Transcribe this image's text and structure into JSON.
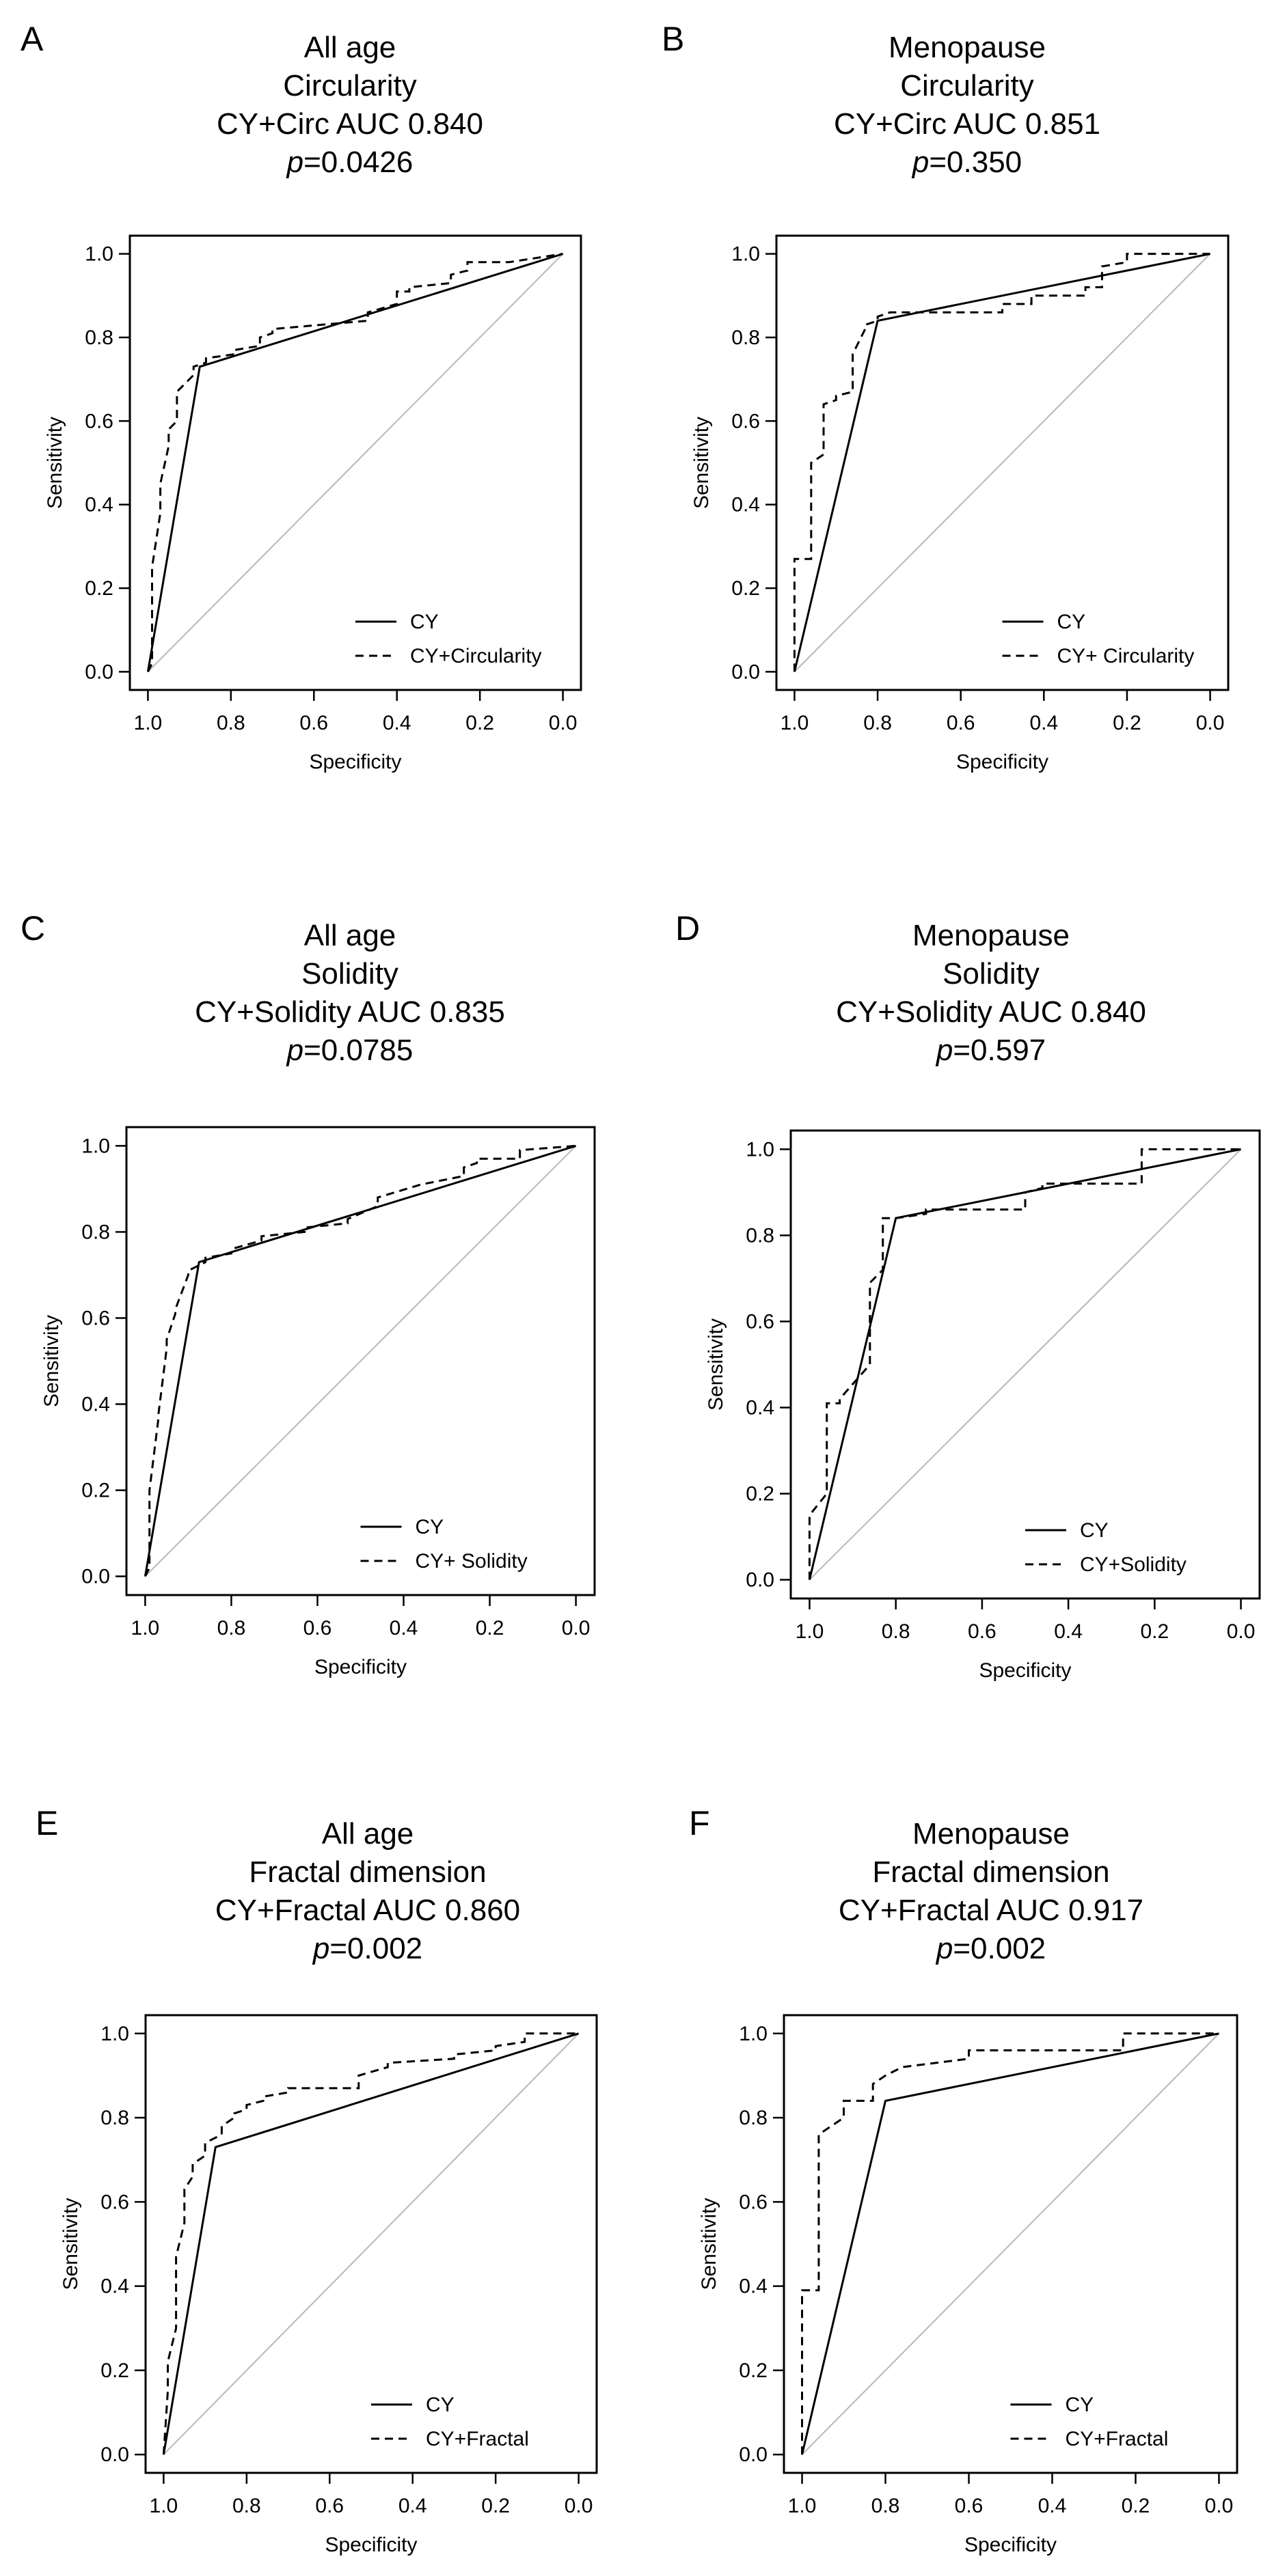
{
  "figure": {
    "panels": [
      {
        "letter": "A",
        "title_lines": [
          "All age",
          "Circularity",
          "CY+Circ AUC 0.840"
        ],
        "p_prefix": "p",
        "p_value": "=0.0426"
      },
      {
        "letter": "B",
        "title_lines": [
          "Menopause",
          "Circularity",
          "CY+Circ AUC 0.851"
        ],
        "p_prefix": "p",
        "p_value": "=0.350"
      },
      {
        "letter": "C",
        "title_lines": [
          "All age",
          "Solidity",
          "CY+Solidity AUC 0.835"
        ],
        "p_prefix": "p",
        "p_value": "=0.0785"
      },
      {
        "letter": "D",
        "title_lines": [
          "Menopause",
          "Solidity",
          "CY+Solidity AUC 0.840"
        ],
        "p_prefix": "p",
        "p_value": "=0.597"
      },
      {
        "letter": "E",
        "title_lines": [
          "All age",
          "Fractal dimension",
          "CY+Fractal AUC 0.860"
        ],
        "p_prefix": "p",
        "p_value": "=0.002"
      },
      {
        "letter": "F",
        "title_lines": [
          "Menopause",
          "Fractal dimension",
          "CY+Fractal AUC 0.917"
        ],
        "p_prefix": "p",
        "p_value": "=0.002"
      }
    ]
  },
  "chart_data": [
    {
      "type": "line",
      "panel": "A",
      "xlabel": "Specificity",
      "ylabel": "Sensitivity",
      "xlim": [
        1.0,
        0.0
      ],
      "ylim": [
        0.0,
        1.0
      ],
      "x_ticks": [
        "1.0",
        "0.8",
        "0.6",
        "0.4",
        "0.2",
        "0.0"
      ],
      "y_ticks": [
        "0.0",
        "0.2",
        "0.4",
        "0.6",
        "0.8",
        "1.0"
      ],
      "reference_line": true,
      "legend": [
        "CY",
        "CY+Circularity"
      ],
      "series": [
        {
          "name": "CY",
          "style": "solid",
          "x": [
            1.0,
            0.875,
            0.0
          ],
          "y": [
            0.0,
            0.73,
            1.0
          ]
        },
        {
          "name": "CY+Circularity",
          "style": "dashed",
          "x": [
            1.0,
            0.99,
            0.99,
            0.97,
            0.97,
            0.95,
            0.95,
            0.93,
            0.93,
            0.89,
            0.89,
            0.86,
            0.86,
            0.79,
            0.79,
            0.73,
            0.73,
            0.7,
            0.7,
            0.47,
            0.47,
            0.4,
            0.4,
            0.37,
            0.37,
            0.27,
            0.27,
            0.23,
            0.23,
            0.13,
            0.0
          ],
          "y": [
            0.0,
            0.02,
            0.25,
            0.38,
            0.45,
            0.54,
            0.58,
            0.6,
            0.67,
            0.71,
            0.73,
            0.74,
            0.75,
            0.76,
            0.77,
            0.78,
            0.8,
            0.81,
            0.82,
            0.84,
            0.86,
            0.88,
            0.91,
            0.91,
            0.92,
            0.93,
            0.95,
            0.96,
            0.98,
            0.98,
            1.0
          ]
        }
      ]
    },
    {
      "type": "line",
      "panel": "B",
      "xlabel": "Specificity",
      "ylabel": "Sensitivity",
      "xlim": [
        1.0,
        0.0
      ],
      "ylim": [
        0.0,
        1.0
      ],
      "x_ticks": [
        "1.0",
        "0.8",
        "0.6",
        "0.4",
        "0.2",
        "0.0"
      ],
      "y_ticks": [
        "0.0",
        "0.2",
        "0.4",
        "0.6",
        "0.8",
        "1.0"
      ],
      "reference_line": true,
      "legend": [
        "CY",
        "CY+ Circularity"
      ],
      "series": [
        {
          "name": "CY",
          "style": "solid",
          "x": [
            1.0,
            0.8,
            0.0
          ],
          "y": [
            0.0,
            0.84,
            1.0
          ]
        },
        {
          "name": "CY+ Circularity",
          "style": "dashed",
          "x": [
            1.0,
            1.0,
            0.96,
            0.96,
            0.93,
            0.93,
            0.9,
            0.9,
            0.86,
            0.86,
            0.83,
            0.83,
            0.8,
            0.8,
            0.77,
            0.77,
            0.5,
            0.5,
            0.43,
            0.43,
            0.3,
            0.3,
            0.26,
            0.26,
            0.2,
            0.2,
            0.0
          ],
          "y": [
            0.0,
            0.27,
            0.27,
            0.5,
            0.52,
            0.64,
            0.65,
            0.66,
            0.67,
            0.76,
            0.82,
            0.83,
            0.84,
            0.85,
            0.86,
            0.86,
            0.86,
            0.88,
            0.88,
            0.9,
            0.9,
            0.92,
            0.92,
            0.97,
            0.98,
            1.0,
            1.0
          ]
        }
      ]
    },
    {
      "type": "line",
      "panel": "C",
      "xlabel": "Specificity",
      "ylabel": "Sensitivity",
      "xlim": [
        1.0,
        0.0
      ],
      "ylim": [
        0.0,
        1.0
      ],
      "x_ticks": [
        "1.0",
        "0.8",
        "0.6",
        "0.4",
        "0.2",
        "0.0"
      ],
      "y_ticks": [
        "0.0",
        "0.2",
        "0.4",
        "0.6",
        "0.8",
        "1.0"
      ],
      "reference_line": true,
      "legend": [
        "CY",
        "CY+ Solidity"
      ],
      "series": [
        {
          "name": "CY",
          "style": "solid",
          "x": [
            1.0,
            0.875,
            0.0
          ],
          "y": [
            0.0,
            0.73,
            1.0
          ]
        },
        {
          "name": "CY+ Solidity",
          "style": "dashed",
          "x": [
            1.0,
            0.99,
            0.99,
            0.97,
            0.97,
            0.95,
            0.95,
            0.93,
            0.93,
            0.9,
            0.9,
            0.86,
            0.86,
            0.8,
            0.8,
            0.73,
            0.73,
            0.63,
            0.63,
            0.53,
            0.53,
            0.46,
            0.46,
            0.36,
            0.36,
            0.26,
            0.26,
            0.23,
            0.23,
            0.13,
            0.13,
            0.0
          ],
          "y": [
            0.0,
            0.02,
            0.2,
            0.36,
            0.37,
            0.53,
            0.55,
            0.61,
            0.62,
            0.7,
            0.71,
            0.73,
            0.74,
            0.75,
            0.76,
            0.78,
            0.79,
            0.8,
            0.81,
            0.82,
            0.83,
            0.86,
            0.88,
            0.91,
            0.91,
            0.93,
            0.95,
            0.96,
            0.97,
            0.97,
            0.99,
            1.0
          ]
        }
      ]
    },
    {
      "type": "line",
      "panel": "D",
      "xlabel": "Specificity",
      "ylabel": "Sensitivity",
      "xlim": [
        1.0,
        0.0
      ],
      "ylim": [
        0.0,
        1.0
      ],
      "x_ticks": [
        "1.0",
        "0.8",
        "0.6",
        "0.4",
        "0.2",
        "0.0"
      ],
      "y_ticks": [
        "0.0",
        "0.2",
        "0.4",
        "0.6",
        "0.8",
        "1.0"
      ],
      "reference_line": true,
      "legend": [
        "CY",
        "CY+Solidity"
      ],
      "series": [
        {
          "name": "CY",
          "style": "solid",
          "x": [
            1.0,
            0.8,
            0.0
          ],
          "y": [
            0.0,
            0.84,
            1.0
          ]
        },
        {
          "name": "CY+Solidity",
          "style": "dashed",
          "x": [
            1.0,
            1.0,
            0.96,
            0.96,
            0.93,
            0.93,
            0.86,
            0.86,
            0.83,
            0.83,
            0.8,
            0.8,
            0.73,
            0.73,
            0.5,
            0.5,
            0.46,
            0.46,
            0.23,
            0.23,
            0.0
          ],
          "y": [
            0.0,
            0.15,
            0.2,
            0.41,
            0.41,
            0.42,
            0.5,
            0.69,
            0.72,
            0.84,
            0.84,
            0.84,
            0.85,
            0.86,
            0.86,
            0.9,
            0.91,
            0.92,
            0.92,
            1.0,
            1.0
          ]
        }
      ]
    },
    {
      "type": "line",
      "panel": "E",
      "xlabel": "Specificity",
      "ylabel": "Sensitivity",
      "xlim": [
        1.0,
        0.0
      ],
      "ylim": [
        0.0,
        1.0
      ],
      "x_ticks": [
        "1.0",
        "0.8",
        "0.6",
        "0.4",
        "0.2",
        "0.0"
      ],
      "y_ticks": [
        "0.0",
        "0.2",
        "0.4",
        "0.6",
        "0.8",
        "1.0"
      ],
      "reference_line": true,
      "legend": [
        "CY",
        "CY+Fractal"
      ],
      "series": [
        {
          "name": "CY",
          "style": "solid",
          "x": [
            1.0,
            0.875,
            0.0
          ],
          "y": [
            0.0,
            0.73,
            1.0
          ]
        },
        {
          "name": "CY+Fractal",
          "style": "dashed",
          "x": [
            1.0,
            0.99,
            0.99,
            0.97,
            0.97,
            0.95,
            0.95,
            0.93,
            0.93,
            0.9,
            0.9,
            0.86,
            0.86,
            0.83,
            0.83,
            0.8,
            0.8,
            0.76,
            0.76,
            0.7,
            0.7,
            0.66,
            0.66,
            0.53,
            0.53,
            0.46,
            0.46,
            0.3,
            0.3,
            0.2,
            0.2,
            0.13,
            0.13,
            0.0
          ],
          "y": [
            0.0,
            0.15,
            0.22,
            0.3,
            0.47,
            0.55,
            0.63,
            0.66,
            0.69,
            0.71,
            0.74,
            0.76,
            0.78,
            0.8,
            0.81,
            0.82,
            0.83,
            0.84,
            0.85,
            0.86,
            0.87,
            0.87,
            0.87,
            0.87,
            0.9,
            0.92,
            0.93,
            0.94,
            0.95,
            0.96,
            0.97,
            0.98,
            1.0,
            1.0
          ]
        }
      ]
    },
    {
      "type": "line",
      "panel": "F",
      "xlabel": "Specificity",
      "ylabel": "Sensitivity",
      "xlim": [
        1.0,
        0.0
      ],
      "ylim": [
        0.0,
        1.0
      ],
      "x_ticks": [
        "1.0",
        "0.8",
        "0.6",
        "0.4",
        "0.2",
        "0.0"
      ],
      "y_ticks": [
        "0.0",
        "0.2",
        "0.4",
        "0.6",
        "0.8",
        "1.0"
      ],
      "reference_line": true,
      "legend": [
        "CY",
        "CY+Fractal"
      ],
      "series": [
        {
          "name": "CY",
          "style": "solid",
          "x": [
            1.0,
            0.8,
            0.0
          ],
          "y": [
            0.0,
            0.84,
            1.0
          ]
        },
        {
          "name": "CY+Fractal",
          "style": "dashed",
          "x": [
            1.0,
            1.0,
            0.96,
            0.96,
            0.93,
            0.93,
            0.9,
            0.9,
            0.83,
            0.83,
            0.8,
            0.8,
            0.76,
            0.76,
            0.6,
            0.6,
            0.23,
            0.23,
            0.0
          ],
          "y": [
            0.0,
            0.39,
            0.39,
            0.76,
            0.78,
            0.78,
            0.8,
            0.84,
            0.84,
            0.88,
            0.9,
            0.9,
            0.92,
            0.92,
            0.94,
            0.96,
            0.96,
            1.0,
            1.0
          ]
        }
      ]
    }
  ]
}
